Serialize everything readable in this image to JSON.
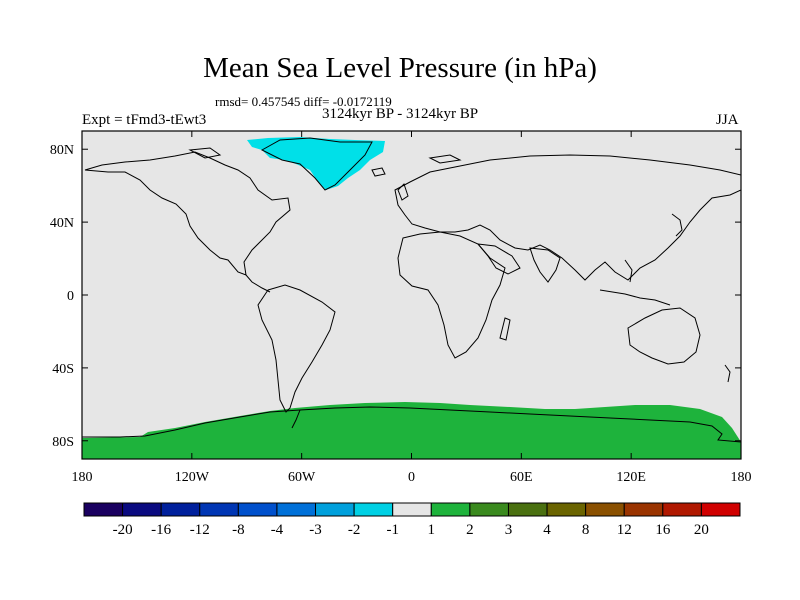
{
  "title": "Mean Sea Level Pressure (in hPa)",
  "stats": "rmsd= 0.457545 diff= -0.0172119",
  "experiment": "Expt = tFmd3-tEwt3",
  "period": "3124kyr BP - 3124kyr BP",
  "season": "JJA",
  "map": {
    "background_color": "#e6e6e6",
    "lat_labels": [
      "80N",
      "40N",
      "0",
      "40S",
      "80S"
    ],
    "lat_values": [
      80,
      40,
      0,
      -40,
      -80
    ],
    "lon_labels": [
      "180",
      "120W",
      "60W",
      "0",
      "60E",
      "120E",
      "180"
    ],
    "lon_values": [
      -180,
      -120,
      -60,
      0,
      60,
      120,
      180
    ],
    "anomalies": [
      {
        "region": "Greenland",
        "category": "-2 to -1",
        "color": "#00e0e8"
      },
      {
        "region": "Antarctica",
        "category": "1 to 2",
        "color": "#1eb33c"
      }
    ]
  },
  "colorbar": {
    "colors": [
      "#1a0060",
      "#0a0a80",
      "#00209c",
      "#0036b4",
      "#0050cc",
      "#0070d8",
      "#00a0dc",
      "#00d0e4",
      "#e6e6e6",
      "#1eb33c",
      "#3a8a1e",
      "#4a7010",
      "#6a6400",
      "#8a5000",
      "#9a3400",
      "#b01800",
      "#d00000"
    ],
    "labels": [
      "-20",
      "-16",
      "-12",
      "-8",
      "-4",
      "-3",
      "-2",
      "-1",
      "1",
      "2",
      "3",
      "4",
      "8",
      "12",
      "16",
      "20"
    ]
  }
}
